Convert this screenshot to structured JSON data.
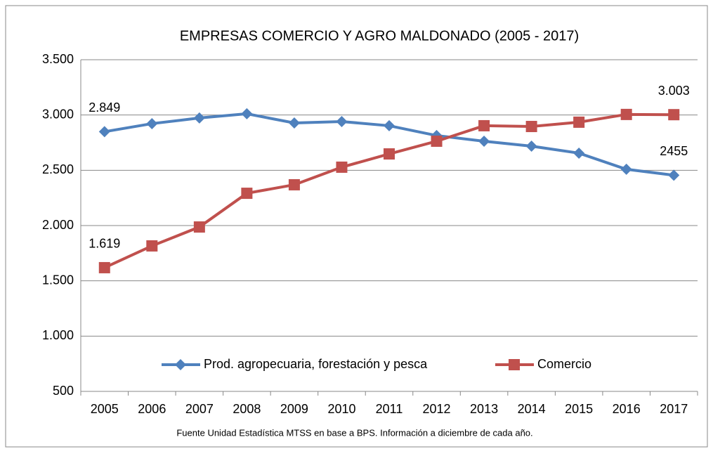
{
  "chart_data": {
    "type": "line",
    "title": "EMPRESAS COMERCIO Y AGRO MALDONADO (2005 - 2017)",
    "source": "Fuente Unidad Estadística MTSS en base a BPS. Información a diciembre de cada año.",
    "categories": [
      "2005",
      "2006",
      "2007",
      "2008",
      "2009",
      "2010",
      "2011",
      "2012",
      "2013",
      "2014",
      "2015",
      "2016",
      "2017"
    ],
    "series": [
      {
        "name": "Prod. agropecuaria, forestación y pesca",
        "color": "#4f81bd",
        "marker": "diamond",
        "values": [
          2849,
          2922,
          2973,
          3011,
          2928,
          2941,
          2903,
          2814,
          2763,
          2718,
          2655,
          2509,
          2455
        ],
        "value_labels": [
          "2.849",
          null,
          null,
          null,
          null,
          null,
          null,
          null,
          null,
          null,
          null,
          null,
          "2455"
        ]
      },
      {
        "name": "Comercio",
        "color": "#c0504d",
        "marker": "square",
        "values": [
          1619,
          1816,
          1987,
          2292,
          2369,
          2528,
          2648,
          2763,
          2903,
          2896,
          2935,
          3005,
          3003
        ],
        "value_labels": [
          "1.619",
          null,
          null,
          null,
          null,
          null,
          null,
          null,
          null,
          null,
          null,
          null,
          "3.003"
        ]
      }
    ],
    "ylim": [
      500,
      3500
    ],
    "yticks": [
      {
        "value": 500,
        "label": "500"
      },
      {
        "value": 1000,
        "label": "1.000"
      },
      {
        "value": 1500,
        "label": "1.500"
      },
      {
        "value": 2000,
        "label": "2.000"
      },
      {
        "value": 2500,
        "label": "2.500"
      },
      {
        "value": 3000,
        "label": "3.000"
      },
      {
        "value": 3500,
        "label": "3.500"
      }
    ],
    "grid": true,
    "legend": "bottom"
  }
}
